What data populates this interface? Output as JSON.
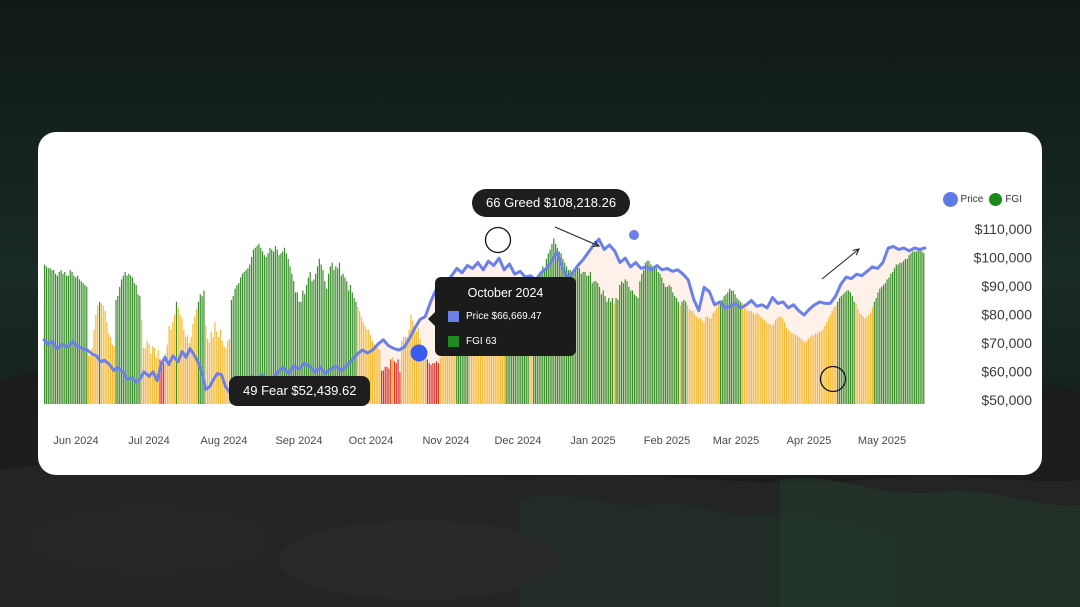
{
  "colors": {
    "price": "#6b80e8",
    "fear": "#f5b935",
    "greed": "#3a8f2c",
    "extreme_fear": "#e0302b",
    "shade": "#fde6d8",
    "legend_price": "#5e7ae6",
    "legend_fgi": "#1a8a1a"
  },
  "legend": {
    "price": "Price",
    "fgi": "FGI"
  },
  "callouts": {
    "peak": "66 Greed $108,218.26",
    "low": "49 Fear $52,439.62"
  },
  "tooltip": {
    "title": "October 2024",
    "price": "Price $66,669.47",
    "fgi": "FGI 63"
  },
  "chart_data": {
    "type": "bar",
    "title": "",
    "xlabel": "",
    "ylabel": "",
    "x_tick_labels": [
      "Jun 2024",
      "Jul 2024",
      "Aug 2024",
      "Sep 2024",
      "Oct 2024",
      "Nov 2024",
      "Dec 2024",
      "Jan 2025",
      "Feb 2025",
      "Mar 2025",
      "Apr 2025",
      "May 2025"
    ],
    "y_tick_labels": [
      "$110,000",
      "$100,000",
      "$90,000",
      "$80,000",
      "$70,000",
      "$60,000",
      "$50,000"
    ],
    "ylim": [
      50000,
      110000
    ],
    "fgi_range": [
      0,
      100
    ],
    "legend_position": "top-right",
    "grid": false,
    "series": [
      {
        "name": "Price",
        "type": "line",
        "points": [
          [
            0,
            72000
          ],
          [
            0.3,
            70500
          ],
          [
            0.6,
            71500
          ],
          [
            1.0,
            69000
          ],
          [
            1.4,
            70500
          ],
          [
            1.8,
            69500
          ],
          [
            2.2,
            71500
          ],
          [
            2.5,
            70000
          ],
          [
            2.9,
            69000
          ],
          [
            3.3,
            68500
          ],
          [
            3.7,
            67000
          ],
          [
            4.0,
            66500
          ],
          [
            4.3,
            64500
          ],
          [
            4.6,
            65000
          ],
          [
            5.0,
            63500
          ],
          [
            5.3,
            61500
          ],
          [
            5.6,
            62500
          ],
          [
            6.0,
            61000
          ],
          [
            6.3,
            58500
          ],
          [
            6.7,
            59000
          ],
          [
            7.0,
            57500
          ],
          [
            7.3,
            58500
          ],
          [
            7.6,
            61000
          ],
          [
            8.0,
            59500
          ],
          [
            8.3,
            61000
          ],
          [
            8.6,
            58000
          ],
          [
            8.9,
            63500
          ],
          [
            9.2,
            66000
          ],
          [
            9.5,
            63500
          ],
          [
            9.8,
            66500
          ],
          [
            10.2,
            64500
          ],
          [
            10.5,
            68000
          ],
          [
            10.8,
            66000
          ],
          [
            11.1,
            69000
          ],
          [
            11.4,
            67000
          ],
          [
            11.7,
            64500
          ],
          [
            12.0,
            61000
          ],
          [
            12.3,
            55000
          ],
          [
            12.6,
            56000
          ],
          [
            12.9,
            58500
          ],
          [
            13.2,
            60500
          ],
          [
            13.5,
            60000
          ],
          [
            13.8,
            56000
          ],
          [
            14.2,
            53500
          ],
          [
            14.6,
            56000
          ],
          [
            15.0,
            55500
          ],
          [
            15.4,
            57000
          ],
          [
            15.8,
            59500
          ],
          [
            16.2,
            58000
          ],
          [
            16.6,
            60000
          ],
          [
            17.0,
            58000
          ],
          [
            17.4,
            59000
          ],
          [
            17.8,
            61000
          ],
          [
            18.2,
            62500
          ],
          [
            18.6,
            60500
          ],
          [
            19.0,
            63000
          ],
          [
            19.4,
            62000
          ],
          [
            19.8,
            64000
          ],
          [
            20.2,
            63000
          ],
          [
            20.6,
            61000
          ],
          [
            21.0,
            62500
          ],
          [
            21.4,
            60500
          ],
          [
            21.8,
            62000
          ],
          [
            22.2,
            63000
          ],
          [
            22.6,
            61500
          ],
          [
            23.0,
            63000
          ],
          [
            23.4,
            65000
          ],
          [
            23.8,
            67000
          ],
          [
            24.2,
            68500
          ],
          [
            24.6,
            67500
          ],
          [
            25.0,
            68500
          ],
          [
            25.4,
            70500
          ],
          [
            25.8,
            72000
          ],
          [
            26.2,
            70000
          ],
          [
            26.6,
            69000
          ],
          [
            27.0,
            68500
          ],
          [
            27.4,
            69500
          ],
          [
            27.8,
            72500
          ],
          [
            28.2,
            76000
          ],
          [
            28.6,
            79000
          ],
          [
            29.0,
            80000
          ],
          [
            29.4,
            85000
          ],
          [
            29.8,
            89000
          ],
          [
            30.2,
            91000
          ],
          [
            30.6,
            91500
          ],
          [
            31.0,
            94000
          ],
          [
            31.4,
            96500
          ],
          [
            31.8,
            95000
          ],
          [
            32.2,
            97500
          ],
          [
            32.6,
            96500
          ],
          [
            33.0,
            98500
          ],
          [
            33.4,
            96000
          ],
          [
            33.8,
            99000
          ],
          [
            34.2,
            97500
          ],
          [
            34.6,
            100000
          ],
          [
            35.0,
            96000
          ],
          [
            35.4,
            98000
          ],
          [
            35.8,
            94500
          ],
          [
            36.2,
            95500
          ],
          [
            36.6,
            93500
          ],
          [
            37.0,
            94000
          ],
          [
            37.4,
            92500
          ],
          [
            37.8,
            95000
          ],
          [
            38.2,
            96500
          ],
          [
            38.6,
            99000
          ],
          [
            39.0,
            102000
          ],
          [
            39.4,
            97000
          ],
          [
            39.8,
            93500
          ],
          [
            40.2,
            95000
          ],
          [
            40.6,
            97500
          ],
          [
            41.0,
            99500
          ],
          [
            41.4,
            102000
          ],
          [
            41.8,
            104500
          ],
          [
            42.2,
            106500
          ],
          [
            42.6,
            103000
          ],
          [
            43.0,
            104500
          ],
          [
            43.4,
            102500
          ],
          [
            43.8,
            98500
          ],
          [
            44.2,
            100000
          ],
          [
            44.6,
            97000
          ],
          [
            45.0,
            98500
          ],
          [
            45.4,
            96500
          ],
          [
            45.8,
            97000
          ],
          [
            46.2,
            96000
          ],
          [
            46.6,
            97500
          ],
          [
            47.0,
            96000
          ],
          [
            47.4,
            96500
          ],
          [
            47.8,
            95500
          ],
          [
            48.2,
            96000
          ],
          [
            48.6,
            94500
          ],
          [
            49.0,
            92500
          ],
          [
            49.4,
            86000
          ],
          [
            49.8,
            82000
          ],
          [
            50.2,
            90000
          ],
          [
            50.6,
            88500
          ],
          [
            51.0,
            84000
          ],
          [
            51.4,
            85000
          ],
          [
            51.8,
            83000
          ],
          [
            52.2,
            83500
          ],
          [
            52.6,
            84500
          ],
          [
            53.0,
            83000
          ],
          [
            53.4,
            84000
          ],
          [
            53.8,
            85500
          ],
          [
            54.2,
            83500
          ],
          [
            54.6,
            84000
          ],
          [
            55.0,
            83000
          ],
          [
            55.4,
            86500
          ],
          [
            55.8,
            84500
          ],
          [
            56.2,
            85000
          ],
          [
            56.6,
            83000
          ],
          [
            57.0,
            84000
          ],
          [
            57.4,
            82000
          ],
          [
            57.8,
            80500
          ],
          [
            58.2,
            82500
          ],
          [
            58.6,
            84000
          ],
          [
            59.0,
            85000
          ],
          [
            59.4,
            84500
          ],
          [
            59.8,
            84500
          ],
          [
            60.2,
            87000
          ],
          [
            60.6,
            91000
          ],
          [
            61.0,
            93500
          ],
          [
            61.4,
            93000
          ],
          [
            61.8,
            94500
          ],
          [
            62.2,
            94000
          ],
          [
            62.6,
            95500
          ],
          [
            63.0,
            97000
          ],
          [
            63.4,
            96500
          ],
          [
            63.8,
            98500
          ],
          [
            64.2,
            103500
          ],
          [
            64.6,
            104000
          ],
          [
            65.0,
            103000
          ],
          [
            65.4,
            103500
          ],
          [
            65.8,
            102500
          ],
          [
            66.2,
            103500
          ],
          [
            66.6,
            103000
          ],
          [
            67.0,
            103500
          ]
        ]
      },
      {
        "name": "FGI",
        "type": "bar",
        "values": [
          75,
          74,
          73,
          73,
          72,
          72,
          70,
          69,
          71,
          72,
          70,
          71,
          69,
          69,
          72,
          71,
          69,
          68,
          69,
          67,
          66,
          65,
          64,
          63,
          26,
          26,
          30,
          40,
          48,
          53,
          55,
          54,
          53,
          50,
          44,
          38,
          36,
          32,
          31,
          56,
          58,
          63,
          67,
          69,
          71,
          69,
          70,
          69,
          68,
          65,
          64,
          59,
          58,
          45,
          30,
          30,
          34,
          32,
          27,
          31,
          30,
          25,
          29,
          24,
          21,
          22,
          27,
          32,
          42,
          40,
          44,
          48,
          55,
          52,
          48,
          46,
          40,
          36,
          37,
          33,
          36,
          43,
          47,
          51,
          55,
          59,
          58,
          61,
          42,
          35,
          33,
          39,
          36,
          44,
          39,
          36,
          40,
          34,
          31,
          30,
          34,
          35,
          56,
          58,
          62,
          64,
          65,
          68,
          70,
          71,
          72,
          73,
          75,
          79,
          83,
          84,
          85,
          86,
          84,
          82,
          80,
          79,
          81,
          84,
          83,
          82,
          85,
          83,
          80,
          81,
          82,
          84,
          81,
          78,
          74,
          70,
          66,
          60,
          60,
          55,
          55,
          61,
          59,
          64,
          68,
          71,
          66,
          67,
          70,
          74,
          78,
          75,
          72,
          66,
          62,
          70,
          74,
          76,
          72,
          74,
          73,
          76,
          69,
          70,
          68,
          66,
          61,
          64,
          60,
          57,
          55,
          52,
          50,
          47,
          44,
          42,
          40,
          40,
          37,
          34,
          32,
          31,
          30,
          29,
          18,
          18,
          20,
          20,
          19,
          24,
          25,
          23,
          22,
          24,
          17,
          34,
          36,
          36,
          36,
          40,
          48,
          45,
          42,
          39,
          41,
          35,
          31,
          28,
          25,
          24,
          22,
          21,
          22,
          22,
          23,
          22,
          25,
          26,
          27,
          29,
          32,
          41,
          45,
          47,
          54,
          55,
          57,
          57,
          58,
          58,
          58,
          57,
          54,
          54,
          53,
          53,
          52,
          54,
          50,
          52,
          51,
          49,
          50,
          51,
          46,
          52,
          44,
          46,
          46,
          47,
          50,
          54,
          56,
          56,
          57,
          56,
          55,
          59,
          61,
          63,
          60,
          56,
          58,
          57,
          57,
          53,
          54,
          60,
          62,
          65,
          66,
          70,
          74,
          73,
          78,
          81,
          83,
          86,
          89,
          86,
          84,
          82,
          81,
          78,
          76,
          74,
          72,
          72,
          70,
          71,
          72,
          74,
          73,
          70,
          71,
          71,
          69,
          69,
          71,
          65,
          66,
          66,
          65,
          63,
          59,
          61,
          58,
          55,
          57,
          55,
          57,
          54,
          57,
          56,
          64,
          66,
          65,
          67,
          66,
          63,
          61,
          61,
          59,
          58,
          57,
          66,
          70,
          72,
          76,
          77,
          77,
          75,
          74,
          73,
          73,
          71,
          70,
          68,
          65,
          63,
          63,
          64,
          63,
          60,
          58,
          57,
          55,
          53,
          55,
          56,
          55,
          53,
          51,
          50,
          50,
          48,
          47,
          46,
          46,
          45,
          44,
          47,
          47,
          46,
          46,
          49,
          50,
          52,
          54,
          55,
          56,
          58,
          59,
          60,
          62,
          61,
          61,
          59,
          57,
          56,
          55,
          54,
          52,
          51,
          50,
          50,
          50,
          49,
          48,
          49,
          48,
          47,
          46,
          45,
          44,
          43,
          43,
          42,
          43,
          45,
          46,
          47,
          47,
          46,
          44,
          41,
          40,
          39,
          38,
          38,
          37,
          37,
          36,
          35,
          34,
          33,
          34,
          35,
          36,
          37,
          37,
          38,
          38,
          39,
          39,
          40,
          42,
          44,
          46,
          48,
          50,
          52,
          53,
          55,
          57,
          58,
          59,
          60,
          61,
          61,
          60,
          58,
          55,
          54,
          51,
          49,
          48,
          47,
          46,
          47,
          48,
          49,
          52,
          55,
          57,
          60,
          62,
          63,
          64,
          65,
          67,
          68,
          70,
          71,
          73,
          75,
          75,
          76,
          76,
          77,
          78,
          78,
          80,
          81,
          82,
          82,
          82,
          83,
          83,
          82,
          81
        ]
      }
    ]
  }
}
